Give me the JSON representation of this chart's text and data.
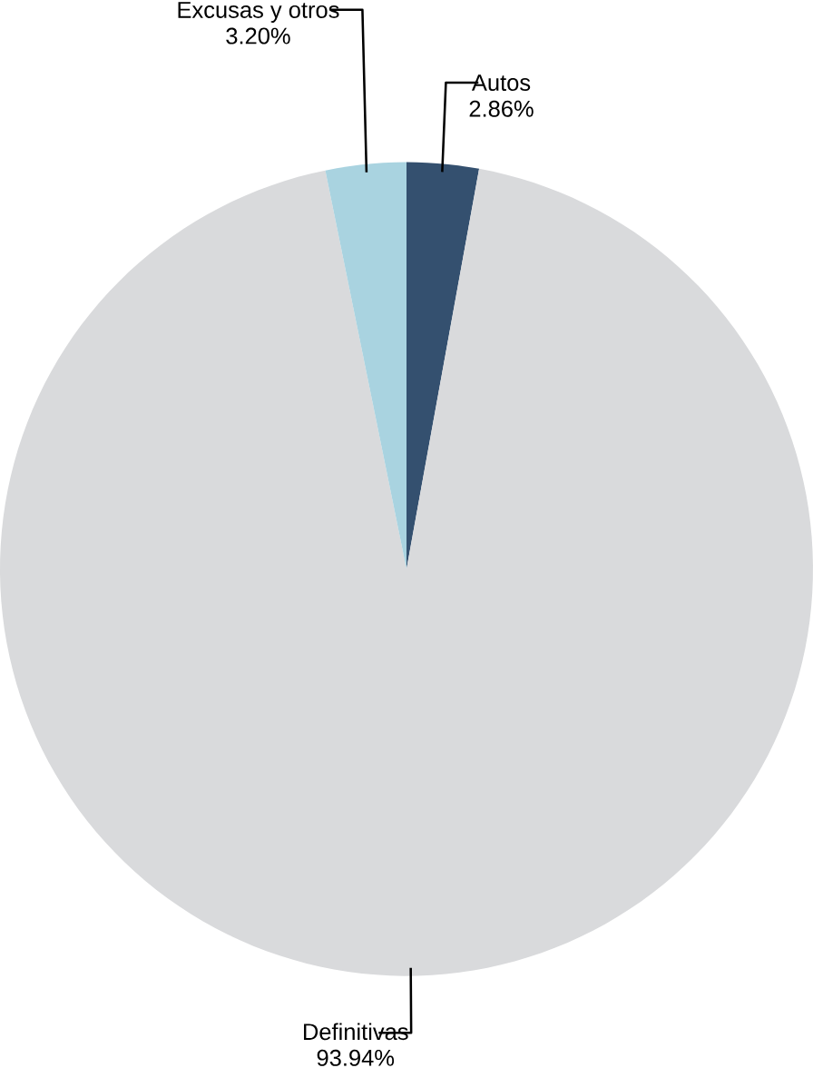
{
  "chart_data": {
    "type": "pie",
    "categories": [
      "Autos",
      "Definitivas",
      "Excusas y otros"
    ],
    "values": [
      2.86,
      93.94,
      3.2
    ],
    "value_labels": [
      "2.86%",
      "93.94%",
      "3.20%"
    ],
    "colors": [
      "#34506f",
      "#d9dadc",
      "#a9d3e0"
    ]
  }
}
